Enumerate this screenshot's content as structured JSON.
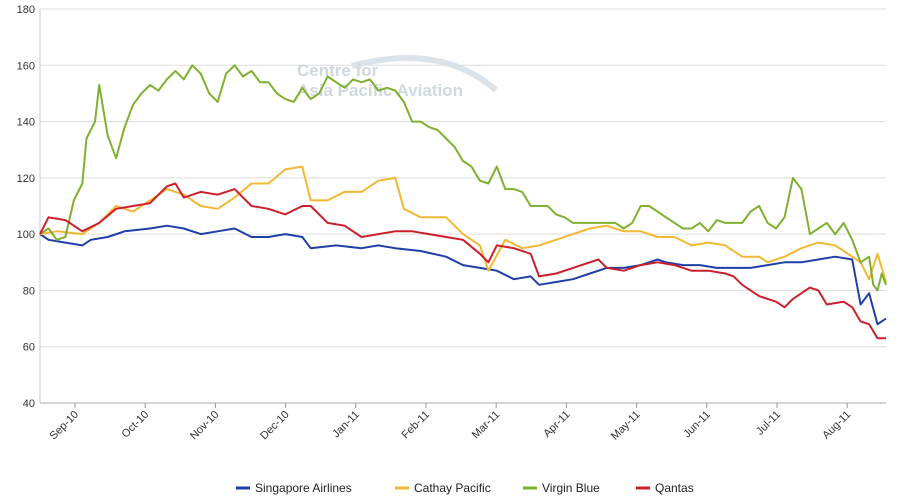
{
  "chart_data": {
    "type": "line",
    "watermark": {
      "line1": "Centre for",
      "line2": "Asia Pacific Aviation"
    },
    "x_tick_labels": [
      "Sep-10",
      "Oct-10",
      "Nov-10",
      "Dec-10",
      "Jan-11",
      "Feb-11",
      "Mar-11",
      "Apr-11",
      "May-11",
      "Jun-11",
      "Jul-11",
      "Aug-11"
    ],
    "y_ticks": [
      40,
      60,
      80,
      100,
      120,
      140,
      160,
      180
    ],
    "ylim": [
      40,
      180
    ],
    "xlim": [
      0,
      100
    ],
    "grid": "horizontal",
    "legend_position": "bottom",
    "series": [
      {
        "name": "Singapore Airlines",
        "color": "#1f3fa8",
        "points": [
          [
            0,
            100
          ],
          [
            1,
            98
          ],
          [
            3,
            97
          ],
          [
            5,
            96
          ],
          [
            6,
            98
          ],
          [
            8,
            99
          ],
          [
            10,
            101
          ],
          [
            13,
            102
          ],
          [
            15,
            103
          ],
          [
            17,
            102
          ],
          [
            19,
            100
          ],
          [
            21,
            101
          ],
          [
            23,
            102
          ],
          [
            25,
            99
          ],
          [
            27,
            99
          ],
          [
            29,
            100
          ],
          [
            31,
            99
          ],
          [
            32,
            95
          ],
          [
            35,
            96
          ],
          [
            38,
            95
          ],
          [
            40,
            96
          ],
          [
            42,
            95
          ],
          [
            45,
            94
          ],
          [
            48,
            92
          ],
          [
            50,
            89
          ],
          [
            52,
            88
          ],
          [
            54,
            87
          ],
          [
            56,
            84
          ],
          [
            58,
            85
          ],
          [
            59,
            82
          ],
          [
            61,
            83
          ],
          [
            63,
            84
          ],
          [
            65,
            86
          ],
          [
            67,
            88
          ],
          [
            69,
            88
          ],
          [
            71,
            89
          ],
          [
            73,
            91
          ],
          [
            74,
            90
          ],
          [
            76,
            89
          ],
          [
            78,
            89
          ],
          [
            80,
            88
          ],
          [
            82,
            88
          ],
          [
            84,
            88
          ],
          [
            86,
            89
          ],
          [
            88,
            90
          ],
          [
            90,
            90
          ],
          [
            92,
            91
          ],
          [
            94,
            92
          ],
          [
            96,
            91
          ],
          [
            97,
            75
          ],
          [
            98,
            79
          ],
          [
            99,
            68
          ],
          [
            100,
            70
          ]
        ]
      },
      {
        "name": "Cathay Pacific",
        "color": "#f2b833",
        "points": [
          [
            0,
            100
          ],
          [
            2,
            101
          ],
          [
            5,
            100
          ],
          [
            7,
            104
          ],
          [
            9,
            110
          ],
          [
            11,
            108
          ],
          [
            13,
            112
          ],
          [
            15,
            116
          ],
          [
            17,
            114
          ],
          [
            19,
            110
          ],
          [
            21,
            109
          ],
          [
            23,
            113
          ],
          [
            25,
            118
          ],
          [
            27,
            118
          ],
          [
            29,
            123
          ],
          [
            31,
            124
          ],
          [
            32,
            112
          ],
          [
            34,
            112
          ],
          [
            36,
            115
          ],
          [
            38,
            115
          ],
          [
            40,
            119
          ],
          [
            42,
            120
          ],
          [
            43,
            109
          ],
          [
            45,
            106
          ],
          [
            48,
            106
          ],
          [
            50,
            100
          ],
          [
            52,
            96
          ],
          [
            53,
            87
          ],
          [
            55,
            98
          ],
          [
            57,
            95
          ],
          [
            59,
            96
          ],
          [
            61,
            98
          ],
          [
            63,
            100
          ],
          [
            65,
            102
          ],
          [
            67,
            103
          ],
          [
            69,
            101
          ],
          [
            71,
            101
          ],
          [
            73,
            99
          ],
          [
            75,
            99
          ],
          [
            77,
            96
          ],
          [
            79,
            97
          ],
          [
            81,
            96
          ],
          [
            83,
            92
          ],
          [
            85,
            92
          ],
          [
            86,
            90
          ],
          [
            88,
            92
          ],
          [
            90,
            95
          ],
          [
            92,
            97
          ],
          [
            94,
            96
          ],
          [
            96,
            92
          ],
          [
            97,
            90
          ],
          [
            98,
            84
          ],
          [
            99,
            93
          ],
          [
            100,
            83
          ]
        ]
      },
      {
        "name": "Virgin Blue",
        "color": "#7fb02f",
        "points": [
          [
            0,
            100
          ],
          [
            1,
            102
          ],
          [
            2,
            98
          ],
          [
            3,
            99
          ],
          [
            4,
            112
          ],
          [
            5,
            118
          ],
          [
            5.5,
            134
          ],
          [
            6.5,
            140
          ],
          [
            7,
            153
          ],
          [
            8,
            135
          ],
          [
            9,
            127
          ],
          [
            10,
            138
          ],
          [
            11,
            146
          ],
          [
            12,
            150
          ],
          [
            13,
            153
          ],
          [
            14,
            151
          ],
          [
            15,
            155
          ],
          [
            16,
            158
          ],
          [
            17,
            155
          ],
          [
            18,
            160
          ],
          [
            19,
            157
          ],
          [
            20,
            150
          ],
          [
            21,
            147
          ],
          [
            22,
            157
          ],
          [
            23,
            160
          ],
          [
            24,
            156
          ],
          [
            25,
            158
          ],
          [
            26,
            154
          ],
          [
            27,
            154
          ],
          [
            28,
            150
          ],
          [
            29,
            148
          ],
          [
            30,
            147
          ],
          [
            31,
            152
          ],
          [
            32,
            148
          ],
          [
            33,
            150
          ],
          [
            34,
            156
          ],
          [
            35,
            154
          ],
          [
            36,
            152
          ],
          [
            37,
            155
          ],
          [
            38,
            154
          ],
          [
            39,
            155
          ],
          [
            40,
            151
          ],
          [
            41,
            152
          ],
          [
            42,
            151
          ],
          [
            43,
            147
          ],
          [
            44,
            140
          ],
          [
            45,
            140
          ],
          [
            46,
            138
          ],
          [
            47,
            137
          ],
          [
            48,
            134
          ],
          [
            49,
            131
          ],
          [
            50,
            126
          ],
          [
            51,
            124
          ],
          [
            52,
            119
          ],
          [
            53,
            118
          ],
          [
            54,
            124
          ],
          [
            55,
            116
          ],
          [
            56,
            116
          ],
          [
            57,
            115
          ],
          [
            58,
            110
          ],
          [
            59,
            110
          ],
          [
            60,
            110
          ],
          [
            61,
            107
          ],
          [
            62,
            106
          ],
          [
            63,
            104
          ],
          [
            64,
            104
          ],
          [
            65,
            104
          ],
          [
            66,
            104
          ],
          [
            67,
            104
          ],
          [
            68,
            104
          ],
          [
            69,
            102
          ],
          [
            70,
            104
          ],
          [
            71,
            110
          ],
          [
            72,
            110
          ],
          [
            73,
            108
          ],
          [
            74,
            106
          ],
          [
            75,
            104
          ],
          [
            76,
            102
          ],
          [
            77,
            102
          ],
          [
            78,
            104
          ],
          [
            79,
            101
          ],
          [
            80,
            105
          ],
          [
            81,
            104
          ],
          [
            82,
            104
          ],
          [
            83,
            104
          ],
          [
            84,
            108
          ],
          [
            85,
            110
          ],
          [
            86,
            104
          ],
          [
            87,
            102
          ],
          [
            88,
            106
          ],
          [
            89,
            120
          ],
          [
            90,
            116
          ],
          [
            91,
            100
          ],
          [
            92,
            102
          ],
          [
            93,
            104
          ],
          [
            94,
            100
          ],
          [
            95,
            104
          ],
          [
            96,
            98
          ],
          [
            97,
            90
          ],
          [
            98,
            92
          ],
          [
            98.5,
            82
          ],
          [
            99,
            80
          ],
          [
            99.5,
            86
          ],
          [
            100,
            82
          ]
        ]
      },
      {
        "name": "Qantas",
        "color": "#cc1f2a",
        "points": [
          [
            0,
            100
          ],
          [
            1,
            106
          ],
          [
            3,
            105
          ],
          [
            5,
            101
          ],
          [
            7,
            104
          ],
          [
            9,
            109
          ],
          [
            11,
            110
          ],
          [
            13,
            111
          ],
          [
            15,
            117
          ],
          [
            16,
            118
          ],
          [
            17,
            113
          ],
          [
            19,
            115
          ],
          [
            21,
            114
          ],
          [
            23,
            116
          ],
          [
            25,
            110
          ],
          [
            27,
            109
          ],
          [
            29,
            107
          ],
          [
            31,
            110
          ],
          [
            32,
            110
          ],
          [
            34,
            104
          ],
          [
            36,
            103
          ],
          [
            38,
            99
          ],
          [
            40,
            100
          ],
          [
            42,
            101
          ],
          [
            44,
            101
          ],
          [
            46,
            100
          ],
          [
            48,
            99
          ],
          [
            50,
            98
          ],
          [
            52,
            93
          ],
          [
            53,
            90
          ],
          [
            54,
            96
          ],
          [
            56,
            95
          ],
          [
            58,
            93
          ],
          [
            59,
            85
          ],
          [
            61,
            86
          ],
          [
            63,
            88
          ],
          [
            65,
            90
          ],
          [
            66,
            91
          ],
          [
            67,
            88
          ],
          [
            69,
            87
          ],
          [
            71,
            89
          ],
          [
            73,
            90
          ],
          [
            75,
            89
          ],
          [
            77,
            87
          ],
          [
            79,
            87
          ],
          [
            81,
            86
          ],
          [
            82,
            85
          ],
          [
            83,
            82
          ],
          [
            85,
            78
          ],
          [
            87,
            76
          ],
          [
            88,
            74
          ],
          [
            89,
            77
          ],
          [
            91,
            81
          ],
          [
            92,
            80
          ],
          [
            93,
            75
          ],
          [
            95,
            76
          ],
          [
            96,
            74
          ],
          [
            97,
            69
          ],
          [
            98,
            68
          ],
          [
            99,
            63
          ],
          [
            100,
            63
          ]
        ]
      }
    ]
  }
}
